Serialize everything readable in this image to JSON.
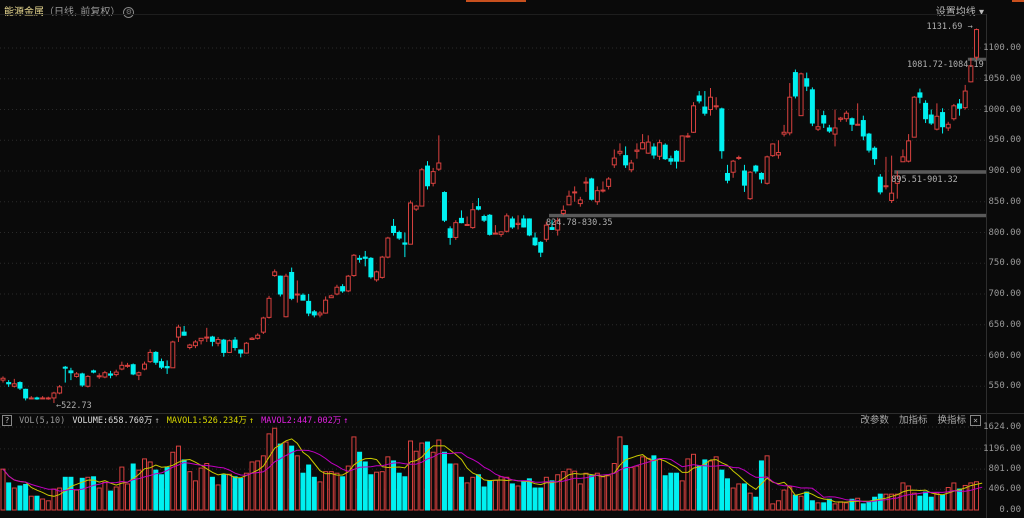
{
  "header": {
    "instrument": "能源金属",
    "period_info": "（日线, 前复权）",
    "settings_icon": "gear-icon",
    "ma_setting_label": "设置均线",
    "ma_setting_caret": "▾"
  },
  "colors": {
    "up": "#d9413f",
    "down": "#00f0f0",
    "mavol1": "#c8c800",
    "mavol2": "#c000c0",
    "background": "#0a0a0a"
  },
  "price_axis": {
    "labels": [
      "1100.00",
      "1050.00",
      "1000.00",
      "950.00",
      "900.00",
      "850.00",
      "800.00",
      "750.00",
      "700.00",
      "650.00",
      "600.00",
      "550.00"
    ],
    "values": [
      1100,
      1050,
      1000,
      950,
      900,
      850,
      800,
      750,
      700,
      650,
      600,
      550
    ]
  },
  "annotations": {
    "high_label": "1131.69",
    "low_label": "522.73",
    "gap_lines": [
      {
        "label": "824.78-830.35",
        "low": 824.78,
        "high": 830.35,
        "from_index": 97
      },
      {
        "label": "895.51-901.32",
        "low": 895.51,
        "high": 901.32,
        "from_index": 158
      },
      {
        "label": "1081.72-1084.19",
        "low": 1081.72,
        "high": 1084.19,
        "from_index": 171
      }
    ]
  },
  "volume_panel": {
    "help_icon": "?",
    "indicator": "VOL(5,10)",
    "volume_label": "VOLUME:658.760万",
    "mavol1_label": "MAVOL1:526.234万",
    "mavol2_label": "MAVOL2:447.002万",
    "arrow": "↑",
    "buttons": [
      "改参数",
      "加指标",
      "换指标"
    ],
    "close_label": "×",
    "axis_labels": [
      "1624.00",
      "1196.00",
      "801.00",
      "406.00",
      "0.00"
    ],
    "axis_values": [
      1624,
      1196,
      801,
      406,
      0
    ]
  },
  "chart_data": {
    "type": "candlestick",
    "ohlc_fields": [
      "open",
      "high",
      "low",
      "close"
    ],
    "ylim": [
      515,
      1150
    ],
    "candles": [
      [
        560,
        566,
        556,
        563
      ],
      [
        556,
        560,
        549,
        554
      ],
      [
        550,
        562,
        548,
        554
      ],
      [
        556,
        558,
        544,
        547
      ],
      [
        545,
        546,
        527,
        531
      ],
      [
        531,
        534,
        529,
        531
      ],
      [
        531,
        533,
        528,
        530
      ],
      [
        530,
        534,
        529,
        531
      ],
      [
        530,
        533,
        528,
        531
      ],
      [
        531,
        541,
        522.73,
        539
      ],
      [
        539,
        552,
        537,
        549
      ],
      [
        581,
        583,
        556,
        580
      ],
      [
        575,
        580,
        560,
        572
      ],
      [
        566,
        573,
        564,
        570
      ],
      [
        570,
        572,
        549,
        552
      ],
      [
        550,
        568,
        548,
        566
      ],
      [
        575,
        577,
        571,
        573
      ],
      [
        567,
        571,
        562,
        567
      ],
      [
        565,
        575,
        563,
        572
      ],
      [
        570,
        575,
        563,
        568
      ],
      [
        569,
        577,
        566,
        573
      ],
      [
        578,
        590,
        576,
        584
      ],
      [
        584,
        588,
        580,
        584
      ],
      [
        585,
        587,
        568,
        570
      ],
      [
        568,
        574,
        560,
        572
      ],
      [
        578,
        590,
        576,
        586
      ],
      [
        590,
        610,
        588,
        605
      ],
      [
        605,
        607,
        585,
        589
      ],
      [
        590,
        595,
        578,
        581
      ],
      [
        582,
        592,
        570,
        580
      ],
      [
        580,
        624,
        580,
        622
      ],
      [
        630,
        650,
        622,
        646
      ],
      [
        638,
        648,
        632,
        633
      ],
      [
        613,
        619,
        610,
        617
      ],
      [
        616,
        625,
        612,
        622
      ],
      [
        624,
        628,
        618,
        628
      ],
      [
        630,
        645,
        622,
        630
      ],
      [
        630,
        632,
        615,
        623
      ],
      [
        620,
        630,
        615,
        626
      ],
      [
        625,
        627,
        598,
        605
      ],
      [
        605,
        626,
        604,
        624
      ],
      [
        625,
        630,
        608,
        613
      ],
      [
        609,
        610,
        597,
        604
      ],
      [
        604,
        622,
        603,
        620
      ],
      [
        626,
        630,
        626,
        628
      ],
      [
        628,
        636,
        626,
        633
      ],
      [
        638,
        663,
        635,
        661
      ],
      [
        662,
        697,
        660,
        693
      ],
      [
        730,
        740,
        728,
        736
      ],
      [
        729,
        730,
        696,
        700
      ],
      [
        663,
        733,
        662,
        729
      ],
      [
        735,
        743,
        690,
        693
      ],
      [
        700,
        722,
        686,
        700
      ],
      [
        698,
        701,
        690,
        690
      ],
      [
        688,
        700,
        664,
        669
      ],
      [
        671,
        674,
        662,
        666
      ],
      [
        666,
        672,
        662,
        669
      ],
      [
        669,
        696,
        668,
        690
      ],
      [
        694,
        699,
        694,
        697
      ],
      [
        700,
        715,
        698,
        711
      ],
      [
        712,
        716,
        702,
        705
      ],
      [
        705,
        731,
        703,
        729
      ],
      [
        730,
        765,
        728,
        763
      ],
      [
        758,
        763,
        751,
        757
      ],
      [
        760,
        770,
        745,
        758
      ],
      [
        758,
        760,
        725,
        728
      ],
      [
        723,
        738,
        720,
        736
      ],
      [
        727,
        762,
        725,
        760
      ],
      [
        760,
        793,
        758,
        791
      ],
      [
        810,
        822,
        795,
        800
      ],
      [
        800,
        803,
        788,
        791
      ],
      [
        783,
        800,
        760,
        781
      ],
      [
        781,
        852,
        781,
        848
      ],
      [
        838,
        845,
        835,
        843
      ],
      [
        843,
        905,
        843,
        902
      ],
      [
        908,
        916,
        870,
        876
      ],
      [
        880,
        905,
        875,
        899
      ],
      [
        903,
        958,
        900,
        913
      ],
      [
        865,
        867,
        817,
        820
      ],
      [
        806,
        810,
        780,
        792
      ],
      [
        792,
        820,
        788,
        816
      ],
      [
        823,
        836,
        815,
        816
      ],
      [
        813,
        826,
        812,
        813
      ],
      [
        808,
        848,
        806,
        837
      ],
      [
        842,
        856,
        836,
        838
      ],
      [
        826,
        829,
        817,
        820
      ],
      [
        828,
        830,
        795,
        797
      ],
      [
        799,
        812,
        797,
        799
      ],
      [
        797,
        802,
        793,
        801
      ],
      [
        802,
        831,
        800,
        827
      ],
      [
        822,
        826,
        806,
        809
      ],
      [
        813,
        828,
        805,
        815
      ],
      [
        822,
        828,
        808,
        809
      ],
      [
        822,
        823,
        794,
        796
      ],
      [
        791,
        800,
        778,
        780
      ],
      [
        784,
        786,
        760,
        768
      ],
      [
        789,
        818,
        785,
        812
      ],
      [
        808,
        820,
        804,
        805
      ],
      [
        804,
        824,
        795,
        819
      ],
      [
        831,
        844,
        828,
        836
      ],
      [
        845,
        868,
        845,
        859
      ],
      [
        866,
        875,
        850,
        866
      ],
      [
        847,
        858,
        842,
        853
      ],
      [
        882,
        890,
        866,
        882
      ],
      [
        887,
        889,
        852,
        854
      ],
      [
        850,
        875,
        845,
        868
      ],
      [
        869,
        883,
        865,
        869
      ],
      [
        875,
        890,
        870,
        887
      ],
      [
        910,
        935,
        905,
        921
      ],
      [
        929,
        945,
        925,
        932
      ],
      [
        925,
        940,
        905,
        910
      ],
      [
        902,
        918,
        898,
        913
      ],
      [
        932,
        945,
        920,
        934
      ],
      [
        936,
        960,
        935,
        946
      ],
      [
        929,
        958,
        928,
        947
      ],
      [
        939,
        945,
        920,
        926
      ],
      [
        924,
        951,
        918,
        946
      ],
      [
        942,
        945,
        918,
        920
      ],
      [
        920,
        925,
        910,
        916
      ],
      [
        932,
        934,
        904,
        916
      ],
      [
        916,
        958,
        916,
        957
      ],
      [
        957,
        962,
        954,
        957
      ],
      [
        963,
        1012,
        962,
        1006
      ],
      [
        1022,
        1030,
        1010,
        1014
      ],
      [
        1004,
        1030,
        990,
        994
      ],
      [
        1000,
        1035,
        990,
        1020
      ],
      [
        1006,
        1020,
        1000,
        1006
      ],
      [
        1001,
        1003,
        920,
        933
      ],
      [
        896,
        910,
        880,
        885
      ],
      [
        898,
        918,
        889,
        916
      ],
      [
        922,
        925,
        918,
        922
      ],
      [
        900,
        910,
        866,
        877
      ],
      [
        855,
        900,
        853,
        898
      ],
      [
        908,
        910,
        896,
        900
      ],
      [
        896,
        898,
        880,
        887
      ],
      [
        880,
        925,
        878,
        923
      ],
      [
        925,
        945,
        923,
        944
      ],
      [
        926,
        950,
        920,
        930
      ],
      [
        960,
        975,
        956,
        963
      ],
      [
        962,
        1043,
        958,
        1020
      ],
      [
        1060,
        1065,
        1018,
        1022
      ],
      [
        990,
        1060,
        990,
        1058
      ],
      [
        1050,
        1060,
        1030,
        1038
      ],
      [
        1032,
        1036,
        973,
        978
      ],
      [
        968,
        1000,
        965,
        972
      ],
      [
        990,
        998,
        970,
        978
      ],
      [
        970,
        975,
        962,
        965
      ],
      [
        960,
        1000,
        940,
        970
      ],
      [
        984,
        988,
        980,
        986
      ],
      [
        985,
        998,
        980,
        994
      ],
      [
        985,
        987,
        965,
        976
      ],
      [
        976,
        1010,
        975,
        976
      ],
      [
        982,
        990,
        950,
        957
      ],
      [
        960,
        962,
        930,
        934
      ],
      [
        937,
        940,
        910,
        920
      ],
      [
        890,
        895,
        862,
        866
      ],
      [
        876,
        923,
        870,
        876
      ],
      [
        852,
        925,
        848,
        864
      ],
      [
        880,
        900,
        855,
        892
      ],
      [
        915,
        935,
        915,
        923
      ],
      [
        916,
        960,
        914,
        949
      ],
      [
        955,
        1022,
        955,
        1020
      ],
      [
        1027,
        1034,
        1010,
        1020
      ],
      [
        1010,
        1015,
        978,
        985
      ],
      [
        991,
        1000,
        975,
        978
      ],
      [
        968,
        1010,
        966,
        989
      ],
      [
        995,
        1002,
        961,
        972
      ],
      [
        970,
        980,
        965,
        976
      ],
      [
        985,
        1009,
        982,
        1006
      ],
      [
        1009,
        1017,
        990,
        1002
      ],
      [
        1003,
        1040,
        1000,
        1030
      ],
      [
        1045,
        1084,
        1044,
        1071
      ],
      [
        1085,
        1131.69,
        1081,
        1130
      ]
    ],
    "volume_unit": "万",
    "volume": [
      800,
      530,
      430,
      470,
      500,
      270,
      270,
      215,
      180,
      410,
      430,
      640,
      640,
      390,
      620,
      640,
      650,
      430,
      540,
      370,
      450,
      840,
      510,
      900,
      780,
      1000,
      940,
      780,
      690,
      830,
      1130,
      1250,
      980,
      750,
      570,
      820,
      910,
      640,
      490,
      690,
      700,
      650,
      620,
      720,
      940,
      960,
      1060,
      1490,
      1600,
      1290,
      1330,
      1250,
      1060,
      720,
      880,
      640,
      550,
      750,
      750,
      720,
      650,
      860,
      1430,
      1130,
      940,
      690,
      740,
      750,
      1040,
      960,
      720,
      650,
      1350,
      1150,
      1310,
      1330,
      1130,
      1370,
      1130,
      900,
      900,
      640,
      530,
      640,
      690,
      450,
      570,
      580,
      650,
      640,
      510,
      470,
      550,
      610,
      430,
      430,
      640,
      570,
      690,
      750,
      800,
      760,
      510,
      720,
      670,
      720,
      650,
      670,
      910,
      1430,
      1260,
      830,
      860,
      1040,
      1010,
      1060,
      1000,
      670,
      720,
      720,
      570,
      1000,
      1090,
      860,
      980,
      960,
      1040,
      780,
      610,
      430,
      510,
      510,
      330,
      250,
      960,
      1060,
      120,
      180,
      390,
      450,
      290,
      270,
      350,
      180,
      140,
      140,
      210,
      120,
      160,
      140,
      210,
      230,
      120,
      160,
      250,
      310,
      310,
      310,
      310,
      530,
      470,
      330,
      270,
      350,
      250,
      330,
      290,
      440,
      528.85,
      410,
      480,
      530,
      552.41,
      658.76
    ],
    "ma_periods": [
      5,
      10
    ]
  }
}
